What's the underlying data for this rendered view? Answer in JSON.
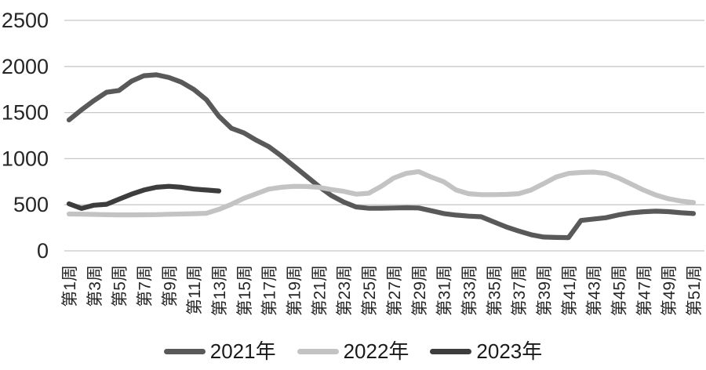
{
  "chart_data": {
    "type": "line",
    "title": "",
    "xlabel": "",
    "ylabel": "",
    "ylim": [
      0,
      2500
    ],
    "y_ticks": [
      0,
      500,
      1000,
      1500,
      2000,
      2500
    ],
    "x_unit": "week",
    "x_range_weeks": [
      1,
      51
    ],
    "x_tick_labels": [
      "第1周",
      "第3周",
      "第5周",
      "第7周",
      "第9周",
      "第11周",
      "第13周",
      "第15周",
      "第17周",
      "第19周",
      "第21周",
      "第23周",
      "第25周",
      "第27周",
      "第29周",
      "第31周",
      "第33周",
      "第35周",
      "第37周",
      "第39周",
      "第41周",
      "第43周",
      "第45周",
      "第47周",
      "第49周",
      "第51周"
    ],
    "grid": "horizontal",
    "legend_position": "bottom",
    "series": [
      {
        "name": "2021年",
        "color": "#595959",
        "start_week": 1,
        "values": [
          1420,
          1530,
          1630,
          1720,
          1740,
          1840,
          1900,
          1910,
          1880,
          1830,
          1750,
          1640,
          1460,
          1330,
          1280,
          1200,
          1130,
          1030,
          920,
          810,
          700,
          600,
          530,
          475,
          462,
          463,
          465,
          468,
          465,
          435,
          405,
          388,
          377,
          370,
          315,
          260,
          215,
          175,
          150,
          145,
          144,
          330,
          345,
          360,
          390,
          412,
          424,
          430,
          425,
          413,
          405
        ]
      },
      {
        "name": "2022年",
        "color": "#c3c3c3",
        "start_week": 1,
        "values": [
          400,
          398,
          395,
          392,
          390,
          390,
          391,
          393,
          397,
          400,
          403,
          407,
          450,
          505,
          570,
          620,
          670,
          690,
          700,
          698,
          690,
          665,
          645,
          615,
          625,
          700,
          790,
          840,
          860,
          800,
          750,
          660,
          620,
          610,
          610,
          612,
          620,
          660,
          730,
          800,
          840,
          850,
          855,
          840,
          790,
          725,
          660,
          605,
          565,
          540,
          525
        ]
      },
      {
        "name": "2023年",
        "color": "#3d3d3d",
        "start_week": 1,
        "values": [
          510,
          460,
          495,
          505,
          560,
          615,
          660,
          690,
          700,
          690,
          670,
          660,
          650
        ]
      }
    ]
  },
  "colors": {
    "background": "#ffffff",
    "gridline": "#c8c8c8",
    "axis_text": "#262626",
    "legend_text": "#1a1a1a"
  }
}
